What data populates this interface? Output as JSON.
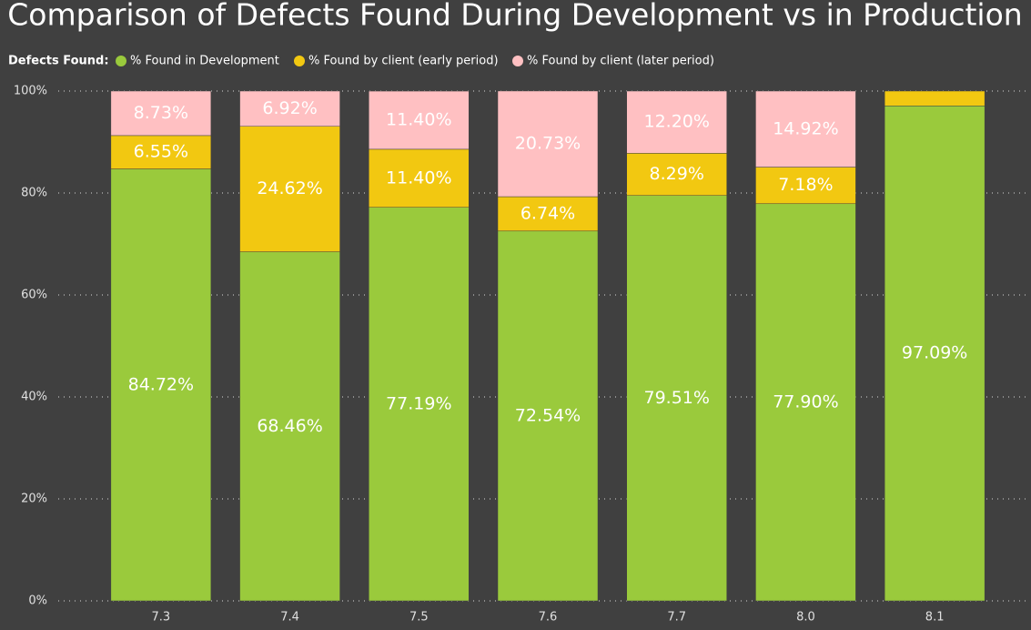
{
  "chart_data": {
    "type": "stacked-bar",
    "title": "Comparison of Defects Found During Development vs in Production",
    "legend_title": "Defects Found:",
    "categories": [
      "7.3",
      "7.4",
      "7.5",
      "7.6",
      "7.7",
      "8.0",
      "8.1"
    ],
    "series": [
      {
        "name": "% Found in Development",
        "color": "#9aca3c",
        "values": [
          84.72,
          68.46,
          77.19,
          72.54,
          79.51,
          77.9,
          97.09
        ],
        "value_labels": [
          "84.72%",
          "68.46%",
          "77.19%",
          "72.54%",
          "79.51%",
          "77.90%",
          "97.09%"
        ]
      },
      {
        "name": "% Found by client (early period)",
        "color": "#f2c811",
        "values": [
          6.55,
          24.62,
          11.4,
          6.74,
          8.29,
          7.18,
          2.91
        ],
        "value_labels": [
          "6.55%",
          "24.62%",
          "11.40%",
          "6.74%",
          "8.29%",
          "7.18%",
          null
        ]
      },
      {
        "name": "% Found by client (later period)",
        "color": "#ffc0c2",
        "values": [
          8.73,
          6.92,
          11.4,
          20.73,
          12.2,
          14.92,
          0
        ],
        "value_labels": [
          "8.73%",
          "6.92%",
          "11.40%",
          "20.73%",
          "12.20%",
          "14.92%",
          null
        ]
      }
    ],
    "ylim": [
      0,
      100
    ],
    "yticks": [
      {
        "value": 0,
        "label": "0%"
      },
      {
        "value": 20,
        "label": "20%"
      },
      {
        "value": 40,
        "label": "40%"
      },
      {
        "value": 60,
        "label": "60%"
      },
      {
        "value": 80,
        "label": "80%"
      },
      {
        "value": 100,
        "label": "100%"
      }
    ],
    "grid": true
  }
}
